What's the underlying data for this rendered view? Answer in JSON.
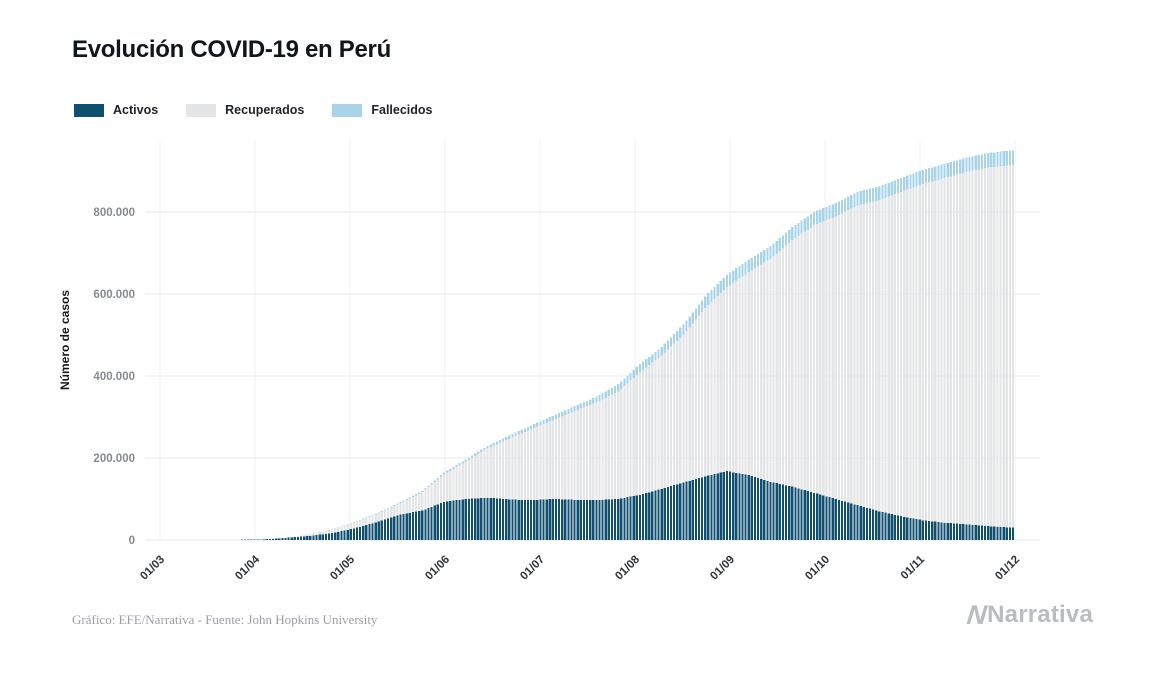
{
  "page": {
    "title": "Evolución COVID-19 en Perú",
    "footer_source": "Gráfico: EFE/Narrativa - Fuente: John Hopkins University",
    "brand": "Narrativa"
  },
  "legend": [
    {
      "label": "Activos",
      "color": "#0f4f70"
    },
    {
      "label": "Recuperados",
      "color": "#e4e5e7"
    },
    {
      "label": "Fallecidos",
      "color": "#a9d4e8"
    }
  ],
  "chart_data": {
    "type": "bar",
    "stacked": true,
    "title": "Evolución COVID-19 en Perú",
    "xlabel": "",
    "ylabel": "Número de casos",
    "grid": true,
    "legend_position": "top-left",
    "ylim": [
      0,
      980000
    ],
    "x_span_days": 275,
    "x_tick_labels": [
      "01/03",
      "01/04",
      "01/05",
      "01/06",
      "01/07",
      "01/08",
      "01/09",
      "01/10",
      "01/11",
      "01/12"
    ],
    "y_ticks": [
      0,
      200000,
      400000,
      600000,
      800000
    ],
    "y_tick_labels": [
      "0",
      "200.000",
      "400.000",
      "600.000",
      "800.000"
    ],
    "categories": [
      "01/03",
      "08/03",
      "15/03",
      "22/03",
      "29/03",
      "05/04",
      "12/04",
      "19/04",
      "26/04",
      "03/05",
      "10/05",
      "17/05",
      "24/05",
      "31/05",
      "07/06",
      "14/06",
      "21/06",
      "28/06",
      "05/07",
      "12/07",
      "19/07",
      "26/07",
      "02/08",
      "09/08",
      "16/08",
      "23/08",
      "30/08",
      "06/09",
      "13/09",
      "20/09",
      "27/09",
      "04/10",
      "11/10",
      "18/10",
      "25/10",
      "01/11",
      "08/11",
      "15/11",
      "22/11",
      "29/11"
    ],
    "series": [
      {
        "name": "Activos",
        "color": "#0f4f70",
        "values": [
          0,
          10,
          80,
          350,
          800,
          2100,
          6300,
          10800,
          18300,
          30000,
          45000,
          62000,
          72000,
          93000,
          100000,
          103000,
          99000,
          97000,
          100000,
          98000,
          97000,
          100000,
          110000,
          125000,
          140000,
          155000,
          168000,
          158000,
          142000,
          130000,
          115000,
          100000,
          85000,
          70000,
          58000,
          48000,
          42000,
          38000,
          34000,
          30000
        ]
      },
      {
        "name": "Recuperados",
        "color": "#e4e5e7",
        "values": [
          0,
          0,
          5,
          10,
          30,
          100,
          1040,
          4430,
          8490,
          14640,
          20420,
          27620,
          44500,
          66970,
          91050,
          120240,
          147890,
          173100,
          191950,
          216020,
          238920,
          261650,
          299240,
          325170,
          359720,
          410860,
          449190,
          495200,
          543770,
          601370,
          653040,
          688960,
          731270,
          758920,
          791220,
          820200,
          840800,
          859650,
          874620,
          884400
        ]
      },
      {
        "name": "Fallecidos",
        "color": "#a9d4e8",
        "values": [
          0,
          0,
          0,
          5,
          25,
          85,
          180,
          400,
          730,
          1290,
          1890,
          2650,
          3460,
          4510,
          5470,
          6500,
          8050,
          9320,
          10770,
          12230,
          13580,
          18230,
          19610,
          20840,
          26080,
          28470,
          29980,
          30500,
          30900,
          31500,
          32100,
          32600,
          33100,
          33500,
          33900,
          34300,
          34700,
          35000,
          35300,
          35600
        ]
      }
    ]
  }
}
